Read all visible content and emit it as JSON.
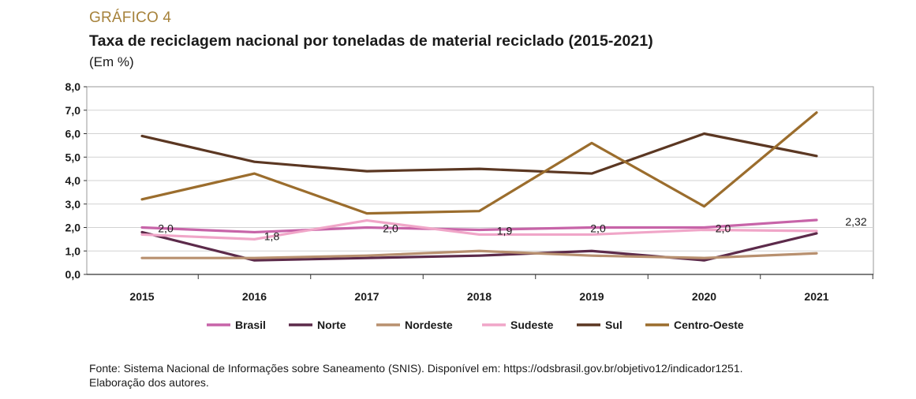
{
  "header": {
    "kicker": "GRÁFICO 4",
    "title": "Taxa de reciclagem nacional por toneladas de material reciclado (2015-2021)",
    "subtitle": "(Em %)"
  },
  "chart_data": {
    "type": "line",
    "x": [
      "2015",
      "2016",
      "2017",
      "2018",
      "2019",
      "2020",
      "2021"
    ],
    "ylim": [
      0,
      8
    ],
    "yticks": [
      "0,0",
      "1,0",
      "2,0",
      "3,0",
      "4,0",
      "5,0",
      "6,0",
      "7,0",
      "8,0"
    ],
    "grid": true,
    "legend_position": "bottom",
    "series": [
      {
        "name": "Brasil",
        "color": "#c764a8",
        "values": [
          2.0,
          1.8,
          2.0,
          1.9,
          2.0,
          2.0,
          2.32
        ]
      },
      {
        "name": "Norte",
        "color": "#5c2a4a",
        "values": [
          1.8,
          0.6,
          0.7,
          0.8,
          1.0,
          0.6,
          1.75
        ]
      },
      {
        "name": "Nordeste",
        "color": "#b8906f",
        "values": [
          0.7,
          0.7,
          0.8,
          1.0,
          0.8,
          0.7,
          0.9
        ]
      },
      {
        "name": "Sudeste",
        "color": "#f0a6c8",
        "values": [
          1.7,
          1.5,
          2.3,
          1.7,
          1.7,
          1.9,
          1.85
        ]
      },
      {
        "name": "Sul",
        "color": "#5b3722",
        "values": [
          5.9,
          4.8,
          4.4,
          4.5,
          4.3,
          6.0,
          5.05
        ]
      },
      {
        "name": "Centro-Oeste",
        "color": "#9b6d2d",
        "values": [
          3.2,
          4.3,
          2.6,
          2.7,
          5.6,
          2.9,
          6.9
        ]
      }
    ],
    "data_labels": [
      {
        "series": "Brasil",
        "index": 0,
        "text": "2,0"
      },
      {
        "series": "Brasil",
        "index": 1,
        "text": "1,8"
      },
      {
        "series": "Brasil",
        "index": 2,
        "text": "2,0"
      },
      {
        "series": "Brasil",
        "index": 3,
        "text": "1,9"
      },
      {
        "series": "Brasil",
        "index": 4,
        "text": "2,0"
      },
      {
        "series": "Brasil",
        "index": 5,
        "text": "2,0"
      },
      {
        "series": "Brasil",
        "index": 6,
        "text": "2,32"
      }
    ]
  },
  "footer": {
    "line1": "Fonte: Sistema Nacional de Informações sobre Saneamento (SNIS). Disponível em: https://odsbrasil.gov.br/objetivo12/indicador1251.",
    "line2": "Elaboração dos autores."
  }
}
